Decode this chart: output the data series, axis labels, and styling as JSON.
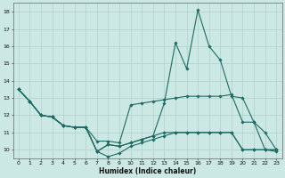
{
  "xlabel": "Humidex (Indice chaleur)",
  "xlim": [
    -0.5,
    23.5
  ],
  "ylim": [
    9.5,
    18.5
  ],
  "yticks": [
    10,
    11,
    12,
    13,
    14,
    15,
    16,
    17,
    18
  ],
  "xticks": [
    0,
    1,
    2,
    3,
    4,
    5,
    6,
    7,
    8,
    9,
    10,
    11,
    12,
    13,
    14,
    15,
    16,
    17,
    18,
    19,
    20,
    21,
    22,
    23
  ],
  "background_color": "#cce8e4",
  "grid_color": "#aed0cc",
  "line_color": "#1e6b64",
  "series": [
    [
      13.5,
      12.8,
      12.0,
      11.9,
      11.4,
      11.3,
      11.3,
      10.5,
      10.5,
      10.4,
      12.6,
      12.7,
      12.8,
      12.9,
      13.0,
      13.1,
      13.1,
      13.1,
      13.1,
      13.2,
      11.6,
      11.6,
      11.0,
      10.0
    ],
    [
      13.5,
      12.8,
      12.0,
      11.9,
      11.4,
      11.3,
      11.3,
      9.9,
      10.3,
      10.2,
      10.4,
      10.6,
      10.8,
      12.7,
      16.2,
      14.7,
      18.1,
      16.0,
      15.2,
      13.1,
      13.0,
      11.6,
      10.0,
      9.9
    ],
    [
      13.5,
      12.8,
      12.0,
      11.9,
      11.4,
      11.3,
      11.3,
      9.9,
      10.3,
      10.2,
      10.4,
      10.6,
      10.8,
      11.0,
      11.0,
      11.0,
      11.0,
      11.0,
      11.0,
      11.0,
      10.0,
      10.0,
      10.0,
      10.0
    ],
    [
      13.5,
      12.8,
      12.0,
      11.9,
      11.4,
      11.3,
      11.3,
      9.9,
      9.6,
      9.8,
      10.2,
      10.4,
      10.6,
      10.8,
      11.0,
      11.0,
      11.0,
      11.0,
      11.0,
      11.0,
      10.0,
      10.0,
      10.0,
      10.0
    ]
  ],
  "figsize": [
    3.2,
    2.0
  ],
  "dpi": 100
}
